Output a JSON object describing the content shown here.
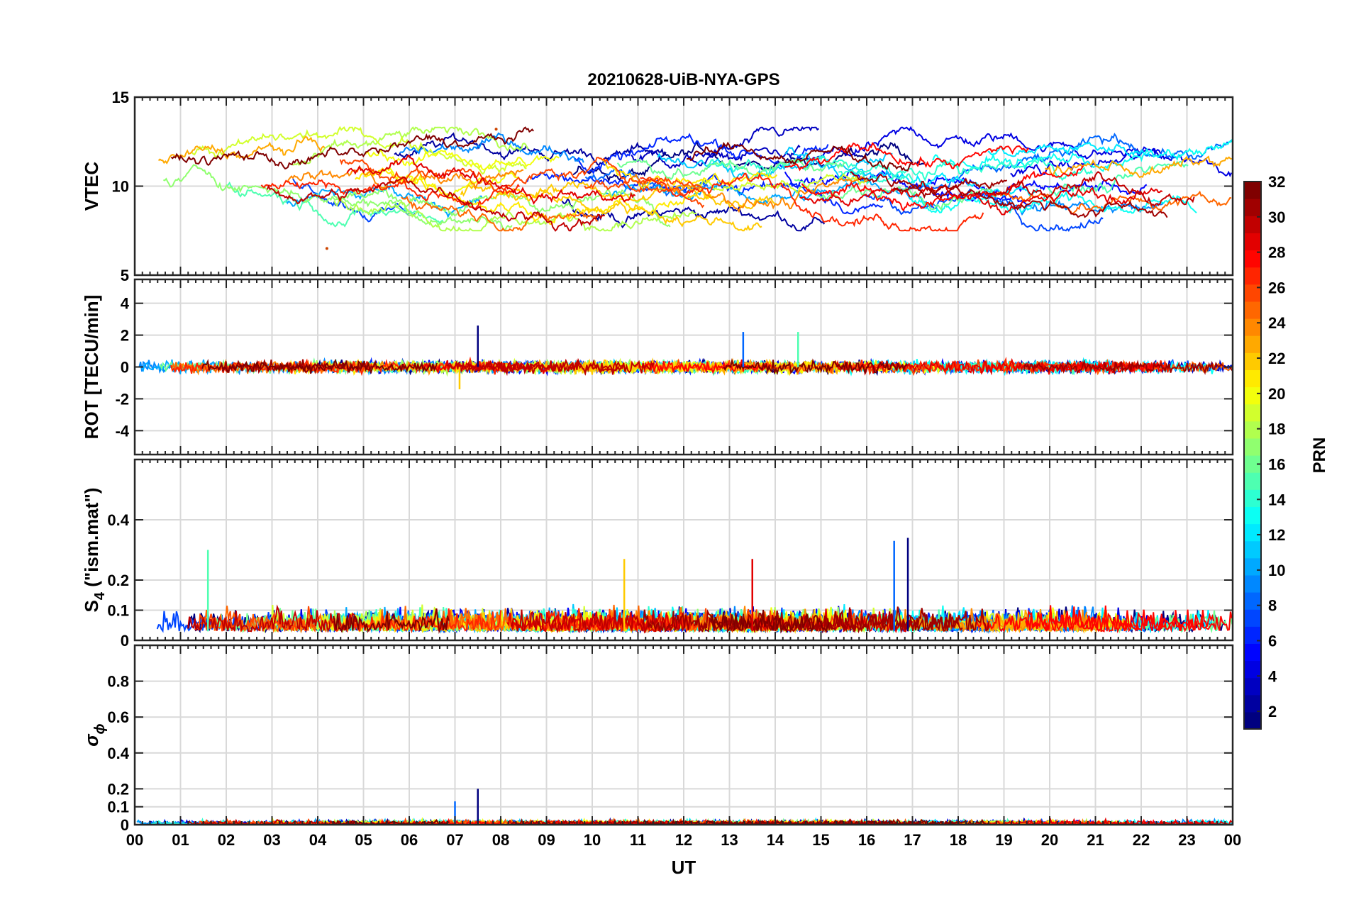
{
  "chart_data": {
    "type": "line",
    "title": "20210628-UiB-NYA-GPS",
    "xlabel": "UT",
    "x_tick_labels": [
      "00",
      "01",
      "02",
      "03",
      "04",
      "05",
      "06",
      "07",
      "08",
      "09",
      "10",
      "11",
      "12",
      "13",
      "14",
      "15",
      "16",
      "17",
      "18",
      "19",
      "20",
      "21",
      "22",
      "23",
      "00"
    ],
    "xlim_hours": [
      0,
      24
    ],
    "grid": true,
    "colormap": "jet",
    "colorbar": {
      "label": "PRN",
      "range": [
        1,
        32
      ],
      "ticks": [
        "2",
        "4",
        "6",
        "8",
        "10",
        "12",
        "14",
        "16",
        "18",
        "20",
        "22",
        "24",
        "26",
        "28",
        "30",
        "32"
      ]
    },
    "panels": [
      {
        "id": "vtec",
        "ylabel": "VTEC",
        "ylim": [
          5,
          15
        ],
        "yticks": [
          "5",
          "10",
          "15"
        ],
        "typical_range": [
          8,
          13
        ],
        "features": [
          {
            "x_hour": 4.2,
            "y": 6.5,
            "note": "low start of track"
          },
          {
            "x_hour": 7.9,
            "y": 13.2,
            "note": "daily maximum"
          }
        ]
      },
      {
        "id": "rot",
        "ylabel": "ROT [TECU/min]",
        "ylim": [
          -5.5,
          5.5
        ],
        "yticks": [
          "-4",
          "-2",
          "0",
          "2",
          "4"
        ],
        "typical_range": [
          -0.6,
          0.6
        ],
        "spikes": [
          {
            "x_hour": 7.5,
            "y": 2.6
          },
          {
            "x_hour": 13.3,
            "y": 2.2
          },
          {
            "x_hour": 14.5,
            "y": 2.2
          },
          {
            "x_hour": 7.1,
            "y": -1.4
          }
        ]
      },
      {
        "id": "s4",
        "ylabel_main": "S",
        "ylabel_sub": "4",
        "ylabel_rest": " (\"ism.mat\")",
        "ylim": [
          0,
          0.6
        ],
        "yticks": [
          "0",
          "0.1",
          "0.2",
          "0.4"
        ],
        "typical_range": [
          0.03,
          0.15
        ],
        "spikes": [
          {
            "x_hour": 16.9,
            "y": 0.34
          },
          {
            "x_hour": 16.6,
            "y": 0.33
          },
          {
            "x_hour": 1.6,
            "y": 0.3
          },
          {
            "x_hour": 10.7,
            "y": 0.27
          },
          {
            "x_hour": 13.5,
            "y": 0.27
          }
        ]
      },
      {
        "id": "sigma_phi",
        "ylabel_main": "σ",
        "ylabel_sub": "ϕ",
        "ylim": [
          0,
          1
        ],
        "yticks": [
          "0",
          "0.1",
          "0.2",
          "0.4",
          "0.6",
          "0.8"
        ],
        "typical_range": [
          0.0,
          0.04
        ],
        "spikes": [
          {
            "x_hour": 7.5,
            "y": 0.2
          },
          {
            "x_hour": 7.0,
            "y": 0.13
          }
        ]
      }
    ]
  }
}
